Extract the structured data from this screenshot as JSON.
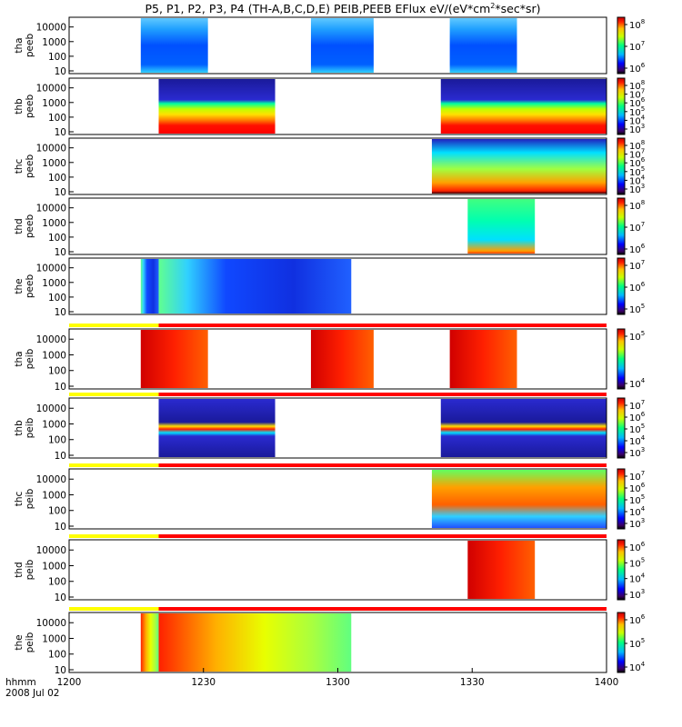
{
  "title": "P5, P1, P2, P3, P4 (TH-A,B,C,D,E) PEIB,PEEB EFlux eV/(eV*cm",
  "title_sup": "2",
  "title_end": "*sec*sr)",
  "x_axis": {
    "label": "hhmm",
    "date": "2008 Jul 02",
    "ticks": [
      "1200",
      "1230",
      "1300",
      "1330",
      "1400"
    ]
  },
  "chart_data": {
    "type": "heatmap",
    "x_range_minutes": [
      0,
      120
    ],
    "x_tick_values_minutes": [
      0,
      30,
      60,
      90,
      120
    ],
    "panels": [
      {
        "probe": "tha",
        "product": "peeb",
        "ylabel": [
          "tha",
          "peeb"
        ],
        "yticks": [
          "10000",
          "1000",
          "100",
          "10"
        ],
        "cbar_ticks": [
          {
            "base": "10",
            "exp": "8"
          },
          {
            "base": "10",
            "exp": "7"
          },
          {
            "base": "10",
            "exp": "6"
          }
        ],
        "intervals": [
          [
            16,
            31
          ],
          [
            54,
            68
          ],
          [
            85,
            100
          ]
        ],
        "palette": "blue",
        "top_bar": false
      },
      {
        "probe": "thb",
        "product": "peeb",
        "ylabel": [
          "thb",
          "peeb"
        ],
        "yticks": [
          "10000",
          "1000",
          "100",
          "10"
        ],
        "cbar_ticks": [
          {
            "base": "10",
            "exp": "8"
          },
          {
            "base": "10",
            "exp": "7"
          },
          {
            "base": "10",
            "exp": "6"
          },
          {
            "base": "10",
            "exp": "5"
          },
          {
            "base": "10",
            "exp": "4"
          },
          {
            "base": "10",
            "exp": "3"
          }
        ],
        "intervals": [
          [
            20,
            46
          ],
          [
            83,
            120
          ]
        ],
        "palette": "stripes",
        "top_bar": false
      },
      {
        "probe": "thc",
        "product": "peeb",
        "ylabel": [
          "thc",
          "peeb"
        ],
        "yticks": [
          "10000",
          "1000",
          "100",
          "10"
        ],
        "cbar_ticks": [
          {
            "base": "10",
            "exp": "8"
          },
          {
            "base": "10",
            "exp": "7"
          },
          {
            "base": "10",
            "exp": "6"
          },
          {
            "base": "10",
            "exp": "5"
          },
          {
            "base": "10",
            "exp": "4"
          },
          {
            "base": "10",
            "exp": "3"
          }
        ],
        "intervals": [
          [
            81,
            120
          ]
        ],
        "palette": "mixed",
        "top_bar": false
      },
      {
        "probe": "thd",
        "product": "peeb",
        "ylabel": [
          "thd",
          "peeb"
        ],
        "yticks": [
          "10000",
          "1000",
          "100",
          "10"
        ],
        "cbar_ticks": [
          {
            "base": "10",
            "exp": "8"
          },
          {
            "base": "10",
            "exp": "7"
          },
          {
            "base": "10",
            "exp": "6"
          }
        ],
        "intervals": [
          [
            89,
            104
          ]
        ],
        "palette": "green",
        "top_bar": false
      },
      {
        "probe": "the",
        "product": "peeb",
        "ylabel": [
          "the",
          "peeb"
        ],
        "yticks": [
          "10000",
          "1000",
          "100",
          "10"
        ],
        "cbar_ticks": [
          {
            "base": "10",
            "exp": "7"
          },
          {
            "base": "10",
            "exp": "6"
          },
          {
            "base": "10",
            "exp": "5"
          }
        ],
        "intervals": [
          [
            16,
            20
          ],
          [
            20,
            63
          ]
        ],
        "palette": "bluedeep",
        "top_bar": false
      },
      {
        "probe": "tha",
        "product": "peib",
        "ylabel": [
          "tha",
          "peib"
        ],
        "yticks": [
          "10000",
          "1000",
          "100",
          "10"
        ],
        "cbar_ticks": [
          {
            "base": "10",
            "exp": "5"
          },
          {
            "base": "10",
            "exp": "4"
          }
        ],
        "intervals": [
          [
            16,
            31
          ],
          [
            54,
            68
          ],
          [
            85,
            100
          ]
        ],
        "palette": "red",
        "top_bar": true,
        "bar_split": 20
      },
      {
        "probe": "thb",
        "product": "peib",
        "ylabel": [
          "thb",
          "peib"
        ],
        "yticks": [
          "10000",
          "1000",
          "100",
          "10"
        ],
        "cbar_ticks": [
          {
            "base": "10",
            "exp": "7"
          },
          {
            "base": "10",
            "exp": "6"
          },
          {
            "base": "10",
            "exp": "5"
          },
          {
            "base": "10",
            "exp": "4"
          },
          {
            "base": "10",
            "exp": "3"
          }
        ],
        "intervals": [
          [
            20,
            46
          ],
          [
            83,
            120
          ]
        ],
        "palette": "stripes2",
        "top_bar": true,
        "bar_split": 20
      },
      {
        "probe": "thc",
        "product": "peib",
        "ylabel": [
          "thc",
          "peib"
        ],
        "yticks": [
          "10000",
          "1000",
          "100",
          "10"
        ],
        "cbar_ticks": [
          {
            "base": "10",
            "exp": "7"
          },
          {
            "base": "10",
            "exp": "6"
          },
          {
            "base": "10",
            "exp": "5"
          },
          {
            "base": "10",
            "exp": "4"
          },
          {
            "base": "10",
            "exp": "3"
          }
        ],
        "intervals": [
          [
            81,
            120
          ]
        ],
        "palette": "mixed2",
        "top_bar": true,
        "bar_split": 20
      },
      {
        "probe": "thd",
        "product": "peib",
        "ylabel": [
          "thd",
          "peib"
        ],
        "yticks": [
          "10000",
          "1000",
          "100",
          "10"
        ],
        "cbar_ticks": [
          {
            "base": "10",
            "exp": "6"
          },
          {
            "base": "10",
            "exp": "5"
          },
          {
            "base": "10",
            "exp": "4"
          },
          {
            "base": "10",
            "exp": "3"
          }
        ],
        "intervals": [
          [
            89,
            104
          ]
        ],
        "palette": "red",
        "top_bar": true,
        "bar_split": 20
      },
      {
        "probe": "the",
        "product": "peib",
        "ylabel": [
          "the",
          "peib"
        ],
        "yticks": [
          "10000",
          "1000",
          "100",
          "10"
        ],
        "cbar_ticks": [
          {
            "base": "10",
            "exp": "6"
          },
          {
            "base": "10",
            "exp": "5"
          },
          {
            "base": "10",
            "exp": "4"
          }
        ],
        "intervals": [
          [
            16,
            20
          ],
          [
            20,
            63
          ]
        ],
        "palette": "redyellow",
        "top_bar": true,
        "bar_split": 20
      }
    ]
  },
  "colors": {
    "bar_yellow": "#ffff00",
    "bar_red": "#ff0000"
  }
}
